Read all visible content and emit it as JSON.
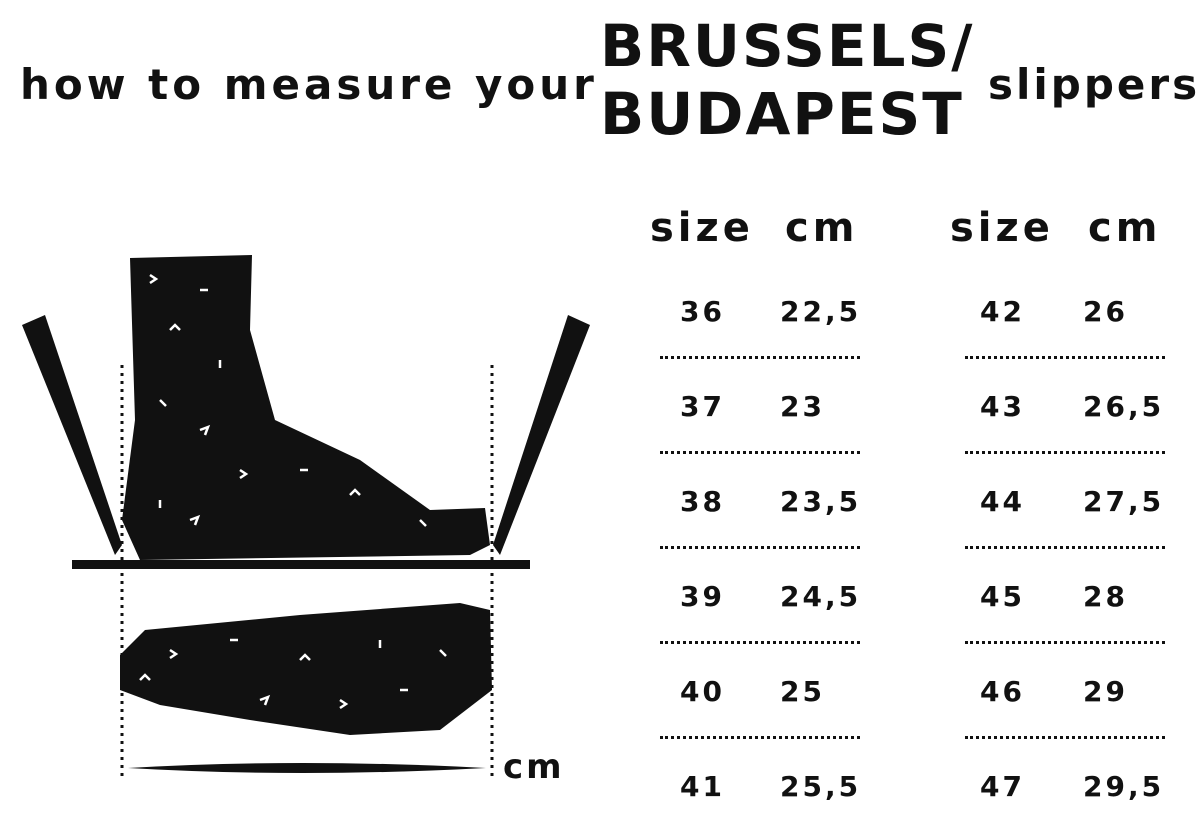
{
  "title": {
    "lead": "how to measure your",
    "brand_line1": "BRUSSELS/",
    "brand_line2": "BUDAPEST",
    "trail": "slippers"
  },
  "illustration": {
    "unit_label": "cm"
  },
  "table": {
    "columns": [
      "size",
      "cm",
      "size",
      "cm"
    ],
    "left_rows": [
      {
        "size": "36",
        "cm": "22,5"
      },
      {
        "size": "37",
        "cm": "23"
      },
      {
        "size": "38",
        "cm": "23,5"
      },
      {
        "size": "39",
        "cm": "24,5"
      },
      {
        "size": "40",
        "cm": "25"
      },
      {
        "size": "41",
        "cm": "25,5"
      }
    ],
    "right_rows": [
      {
        "size": "42",
        "cm": "26"
      },
      {
        "size": "43",
        "cm": "26,5"
      },
      {
        "size": "44",
        "cm": "27,5"
      },
      {
        "size": "45",
        "cm": "28"
      },
      {
        "size": "46",
        "cm": "29"
      },
      {
        "size": "47",
        "cm": "29,5"
      }
    ]
  }
}
